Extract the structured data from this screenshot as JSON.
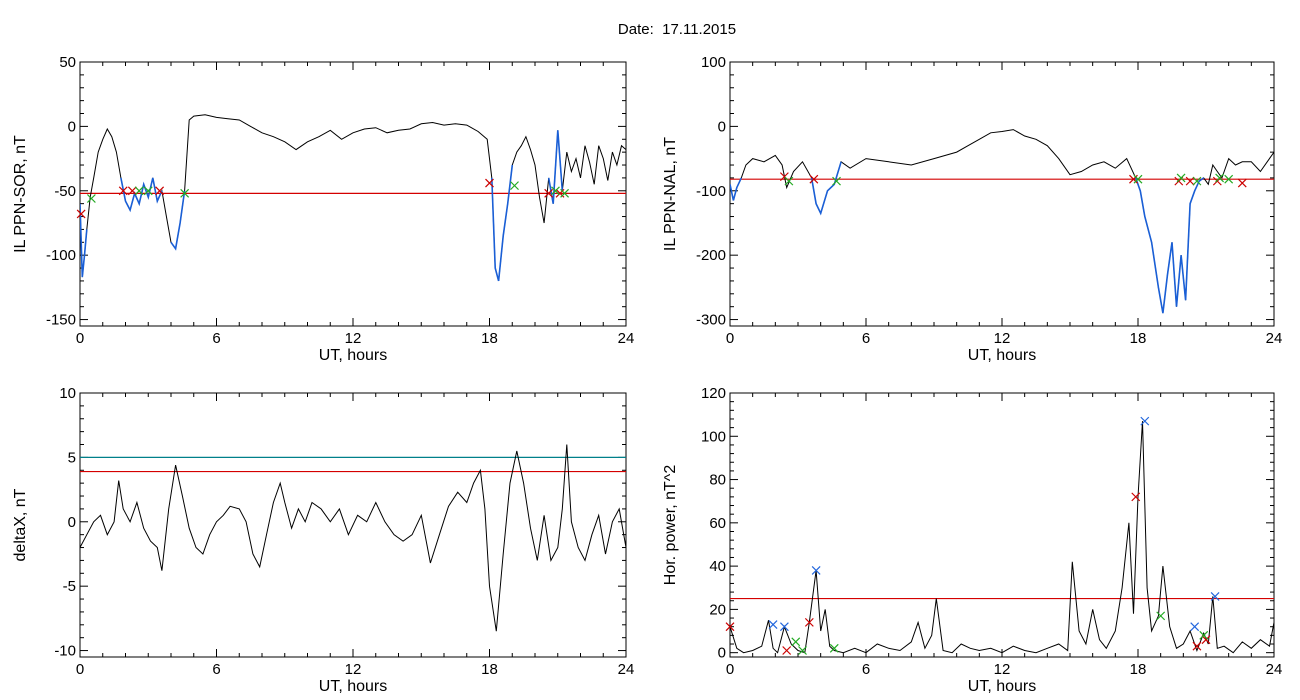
{
  "page_title": "Date:  17.11.2015",
  "colors": {
    "trace": "#000000",
    "threshold_red": "#d40000",
    "threshold_cyan": "#00808a",
    "event_blue": "#1a5fd6",
    "marker_red": "#cc0000",
    "marker_green": "#22aa22",
    "marker_blue": "#2266dd"
  },
  "chart_data": [
    {
      "id": "ppn-sor",
      "type": "line",
      "xlabel": "UT, hours",
      "ylabel": "IL PPN-SOR, nT",
      "xlim": [
        0,
        24
      ],
      "ylim": [
        -155,
        50
      ],
      "xticks": [
        "0",
        "6",
        "12",
        "18",
        "24"
      ],
      "yticks": [
        "50",
        "0",
        "-50",
        "-100",
        "-150"
      ],
      "ytick_values": [
        50,
        0,
        -50,
        -100,
        -150
      ],
      "thresholds": [
        {
          "y": -52,
          "color": "threshold_red"
        }
      ],
      "series": [
        {
          "x": [
            0,
            0.1,
            0.2,
            0.3,
            0.45,
            0.6,
            0.8,
            1.0,
            1.2,
            1.4,
            1.6,
            1.8,
            2.0,
            2.2,
            2.4,
            2.6,
            2.8,
            3.0,
            3.2,
            3.4,
            3.6,
            3.8,
            4.0,
            4.2,
            4.4,
            4.6,
            4.8,
            5.0,
            5.5,
            6.0,
            6.5,
            7.0,
            7.5,
            8.0,
            8.5,
            9.0,
            9.5,
            10.0,
            10.5,
            11.0,
            11.5,
            12.0,
            12.5,
            13.0,
            13.5,
            14.0,
            14.5,
            15.0,
            15.5,
            16.0,
            16.5,
            17.0,
            17.5,
            17.9,
            18.1,
            18.25,
            18.4,
            18.6,
            18.8,
            19.0,
            19.2,
            19.4,
            19.6,
            19.8,
            20.0,
            20.2,
            20.4,
            20.6,
            20.8,
            21.0,
            21.2,
            21.4,
            21.6,
            21.8,
            22.0,
            22.2,
            22.4,
            22.6,
            22.8,
            23.0,
            23.2,
            23.4,
            23.6,
            23.8,
            24.0
          ],
          "y": [
            -60,
            -117,
            -100,
            -80,
            -55,
            -40,
            -20,
            -10,
            -2,
            -8,
            -20,
            -40,
            -58,
            -65,
            -52,
            -60,
            -45,
            -55,
            -40,
            -58,
            -50,
            -70,
            -90,
            -95,
            -75,
            -50,
            5,
            8,
            9,
            7,
            6,
            5,
            0,
            -5,
            -8,
            -12,
            -18,
            -12,
            -8,
            -3,
            -10,
            -5,
            -2,
            -1,
            -5,
            -3,
            -2,
            2,
            3,
            1,
            2,
            1,
            -4,
            -10,
            -40,
            -110,
            -120,
            -85,
            -60,
            -30,
            -20,
            -15,
            -8,
            -18,
            -30,
            -55,
            -75,
            -40,
            -60,
            -3,
            -50,
            -20,
            -35,
            -25,
            -40,
            -15,
            -28,
            -45,
            -15,
            -25,
            -42,
            -20,
            -30,
            -15,
            -18
          ],
          "event_x": [
            0.0,
            0.4,
            1.8,
            3.6,
            3.9,
            4.6,
            18.0,
            19.0,
            20.5,
            21.2
          ],
          "red_marks": [
            [
              0.05,
              -68
            ],
            [
              1.9,
              -50
            ],
            [
              2.3,
              -50
            ],
            [
              3.5,
              -50
            ],
            [
              18.0,
              -44
            ],
            [
              20.6,
              -52
            ],
            [
              21.1,
              -52
            ]
          ],
          "green_marks": [
            [
              0.5,
              -56
            ],
            [
              2.6,
              -50
            ],
            [
              3.0,
              -50
            ],
            [
              4.6,
              -52
            ],
            [
              19.1,
              -46
            ],
            [
              20.9,
              -50
            ],
            [
              21.3,
              -52
            ]
          ],
          "blue_marks": []
        }
      ]
    },
    {
      "id": "ppn-nal",
      "type": "line",
      "xlabel": "UT, hours",
      "ylabel": "IL PPN-NAL, nT",
      "xlim": [
        0,
        24
      ],
      "ylim": [
        -310,
        100
      ],
      "xticks": [
        "0",
        "6",
        "12",
        "18",
        "24"
      ],
      "yticks": [
        "100",
        "0",
        "-100",
        "-200",
        "-300"
      ],
      "ytick_values": [
        100,
        0,
        -100,
        -200,
        -300
      ],
      "thresholds": [
        {
          "y": -82,
          "color": "threshold_red"
        }
      ],
      "series": [
        {
          "x": [
            0,
            0.15,
            0.3,
            0.5,
            0.7,
            1.0,
            1.5,
            2.0,
            2.3,
            2.5,
            2.8,
            3.2,
            3.6,
            3.8,
            4.0,
            4.3,
            4.6,
            4.9,
            5.3,
            6.0,
            7.0,
            8.0,
            9.0,
            10.0,
            10.5,
            11.0,
            11.5,
            12.0,
            12.5,
            13.0,
            13.5,
            14.0,
            14.5,
            15.0,
            15.5,
            16.0,
            16.5,
            17.0,
            17.5,
            17.9,
            18.1,
            18.3,
            18.6,
            18.9,
            19.1,
            19.3,
            19.5,
            19.7,
            19.9,
            20.1,
            20.3,
            20.5,
            20.7,
            20.9,
            21.1,
            21.3,
            21.5,
            21.7,
            22.0,
            22.3,
            22.6,
            23.0,
            23.4,
            23.8,
            24.0
          ],
          "y": [
            -90,
            -115,
            -95,
            -80,
            -60,
            -50,
            -55,
            -45,
            -60,
            -95,
            -70,
            -55,
            -80,
            -120,
            -135,
            -100,
            -90,
            -55,
            -65,
            -50,
            -55,
            -60,
            -50,
            -40,
            -30,
            -20,
            -10,
            -8,
            -5,
            -15,
            -20,
            -30,
            -50,
            -75,
            -70,
            -60,
            -55,
            -65,
            -50,
            -80,
            -100,
            -140,
            -180,
            -250,
            -290,
            -230,
            -180,
            -280,
            -200,
            -270,
            -120,
            -100,
            -85,
            -80,
            -90,
            -60,
            -70,
            -80,
            -50,
            -60,
            -55,
            -55,
            -70,
            -50,
            -40
          ],
          "event_x": [
            0.0,
            0.5,
            2.4,
            2.7,
            3.6,
            4.9,
            17.8,
            21.0
          ],
          "red_marks": [
            [
              2.4,
              -78
            ],
            [
              3.7,
              -82
            ],
            [
              17.8,
              -82
            ],
            [
              19.8,
              -85
            ],
            [
              20.3,
              -85
            ],
            [
              21.5,
              -85
            ],
            [
              22.6,
              -88
            ]
          ],
          "green_marks": [
            [
              2.6,
              -85
            ],
            [
              4.7,
              -85
            ],
            [
              18.0,
              -82
            ],
            [
              19.9,
              -80
            ],
            [
              20.6,
              -85
            ],
            [
              21.6,
              -80
            ],
            [
              22.0,
              -82
            ]
          ],
          "blue_marks": []
        }
      ]
    },
    {
      "id": "deltax",
      "type": "line",
      "xlabel": "UT, hours",
      "ylabel": "deltaX, nT",
      "xlim": [
        0,
        24
      ],
      "ylim": [
        -10.5,
        10
      ],
      "xticks": [
        "0",
        "6",
        "12",
        "18",
        "24"
      ],
      "yticks": [
        "10",
        "5",
        "0",
        "-5",
        "-10"
      ],
      "ytick_values": [
        10,
        5,
        0,
        -5,
        -10
      ],
      "thresholds": [
        {
          "y": 5,
          "color": "threshold_cyan"
        },
        {
          "y": 3.9,
          "color": "threshold_red"
        }
      ],
      "series": [
        {
          "x": [
            0,
            0.3,
            0.6,
            0.9,
            1.2,
            1.5,
            1.7,
            1.9,
            2.2,
            2.5,
            2.8,
            3.1,
            3.4,
            3.6,
            3.9,
            4.2,
            4.5,
            4.8,
            5.1,
            5.4,
            5.7,
            6.0,
            6.3,
            6.6,
            7.0,
            7.3,
            7.6,
            7.9,
            8.2,
            8.5,
            8.8,
            9.0,
            9.3,
            9.6,
            9.9,
            10.2,
            10.6,
            11.0,
            11.4,
            11.8,
            12.2,
            12.6,
            13.0,
            13.4,
            13.8,
            14.2,
            14.6,
            15.0,
            15.4,
            15.8,
            16.2,
            16.6,
            17.0,
            17.3,
            17.6,
            17.8,
            18.0,
            18.3,
            18.6,
            18.9,
            19.2,
            19.5,
            19.8,
            20.1,
            20.4,
            20.7,
            21.0,
            21.2,
            21.4,
            21.6,
            21.9,
            22.2,
            22.5,
            22.8,
            23.1,
            23.4,
            23.7,
            24.0
          ],
          "y": [
            -2,
            -1,
            0,
            0.5,
            -1,
            0,
            3.2,
            1,
            0,
            1.5,
            -0.5,
            -1.5,
            -2,
            -3.8,
            1,
            4.4,
            2,
            -0.5,
            -2,
            -2.5,
            -1,
            0,
            0.5,
            1.2,
            1,
            0,
            -2.5,
            -3.5,
            -1,
            1.5,
            3,
            1.5,
            -0.5,
            1,
            0,
            1.5,
            1,
            0,
            1,
            -1,
            0.5,
            0,
            1.5,
            0,
            -1,
            -1.5,
            -1,
            0.5,
            -3.2,
            -1,
            1.2,
            2.3,
            1.5,
            3,
            4,
            1,
            -5,
            -8.5,
            -2.5,
            3,
            5.5,
            3,
            -0.5,
            -3,
            0.5,
            -3,
            -2,
            1,
            6,
            0,
            -2,
            -3,
            -1,
            0.5,
            -2.5,
            0,
            1,
            -2
          ],
          "event_x": [],
          "red_marks": [],
          "green_marks": [],
          "blue_marks": []
        }
      ]
    },
    {
      "id": "hor-power",
      "type": "line",
      "xlabel": "UT, hours",
      "ylabel": "Hor. power, nT^2",
      "xlim": [
        0,
        24
      ],
      "ylim": [
        -2,
        120
      ],
      "xticks": [
        "0",
        "6",
        "12",
        "18",
        "24"
      ],
      "yticks": [
        "120",
        "100",
        "80",
        "60",
        "40",
        "20",
        "0"
      ],
      "ytick_values": [
        120,
        100,
        80,
        60,
        40,
        20,
        0
      ],
      "thresholds": [
        {
          "y": 25,
          "color": "threshold_red"
        }
      ],
      "series": [
        {
          "x": [
            0,
            0.3,
            0.6,
            1.0,
            1.4,
            1.7,
            1.9,
            2.1,
            2.4,
            2.7,
            3.0,
            3.3,
            3.5,
            3.8,
            4.0,
            4.2,
            4.4,
            4.6,
            5.0,
            5.5,
            6.0,
            6.5,
            7.0,
            7.5,
            8.0,
            8.3,
            8.6,
            8.9,
            9.1,
            9.4,
            9.8,
            10.2,
            10.6,
            11.0,
            11.5,
            12.0,
            12.5,
            13.0,
            13.5,
            14.0,
            14.5,
            14.9,
            15.1,
            15.4,
            15.7,
            16.0,
            16.3,
            16.6,
            17.0,
            17.3,
            17.6,
            17.8,
            18.0,
            18.2,
            18.4,
            18.6,
            18.9,
            19.1,
            19.4,
            19.7,
            20.0,
            20.3,
            20.6,
            20.9,
            21.1,
            21.3,
            21.5,
            21.8,
            22.2,
            22.6,
            23.0,
            23.4,
            23.8,
            24.0
          ],
          "y": [
            12,
            2,
            0,
            1,
            3,
            15,
            2,
            0,
            12,
            4,
            1,
            0,
            14,
            38,
            10,
            20,
            3,
            1,
            0,
            2,
            0,
            4,
            2,
            1,
            5,
            14,
            2,
            8,
            25,
            1,
            0,
            4,
            2,
            1,
            2,
            0,
            3,
            1,
            0,
            2,
            4,
            1,
            42,
            10,
            4,
            20,
            6,
            2,
            10,
            30,
            60,
            18,
            72,
            107,
            30,
            10,
            17,
            40,
            12,
            2,
            4,
            10,
            1,
            9,
            4,
            26,
            2,
            3,
            0,
            5,
            2,
            6,
            3,
            14
          ],
          "event_x": [],
          "red_marks": [
            [
              0.0,
              12
            ],
            [
              2.5,
              1
            ],
            [
              3.5,
              14
            ],
            [
              17.9,
              72
            ],
            [
              20.6,
              3
            ],
            [
              21.0,
              6
            ]
          ],
          "green_marks": [
            [
              2.9,
              5
            ],
            [
              3.2,
              1
            ],
            [
              4.6,
              2
            ],
            [
              19.0,
              17
            ],
            [
              20.9,
              8
            ]
          ],
          "blue_marks": [
            [
              1.9,
              13
            ],
            [
              2.4,
              12
            ],
            [
              3.8,
              38
            ],
            [
              18.3,
              107
            ],
            [
              20.5,
              12
            ],
            [
              21.4,
              26
            ]
          ]
        }
      ]
    }
  ]
}
